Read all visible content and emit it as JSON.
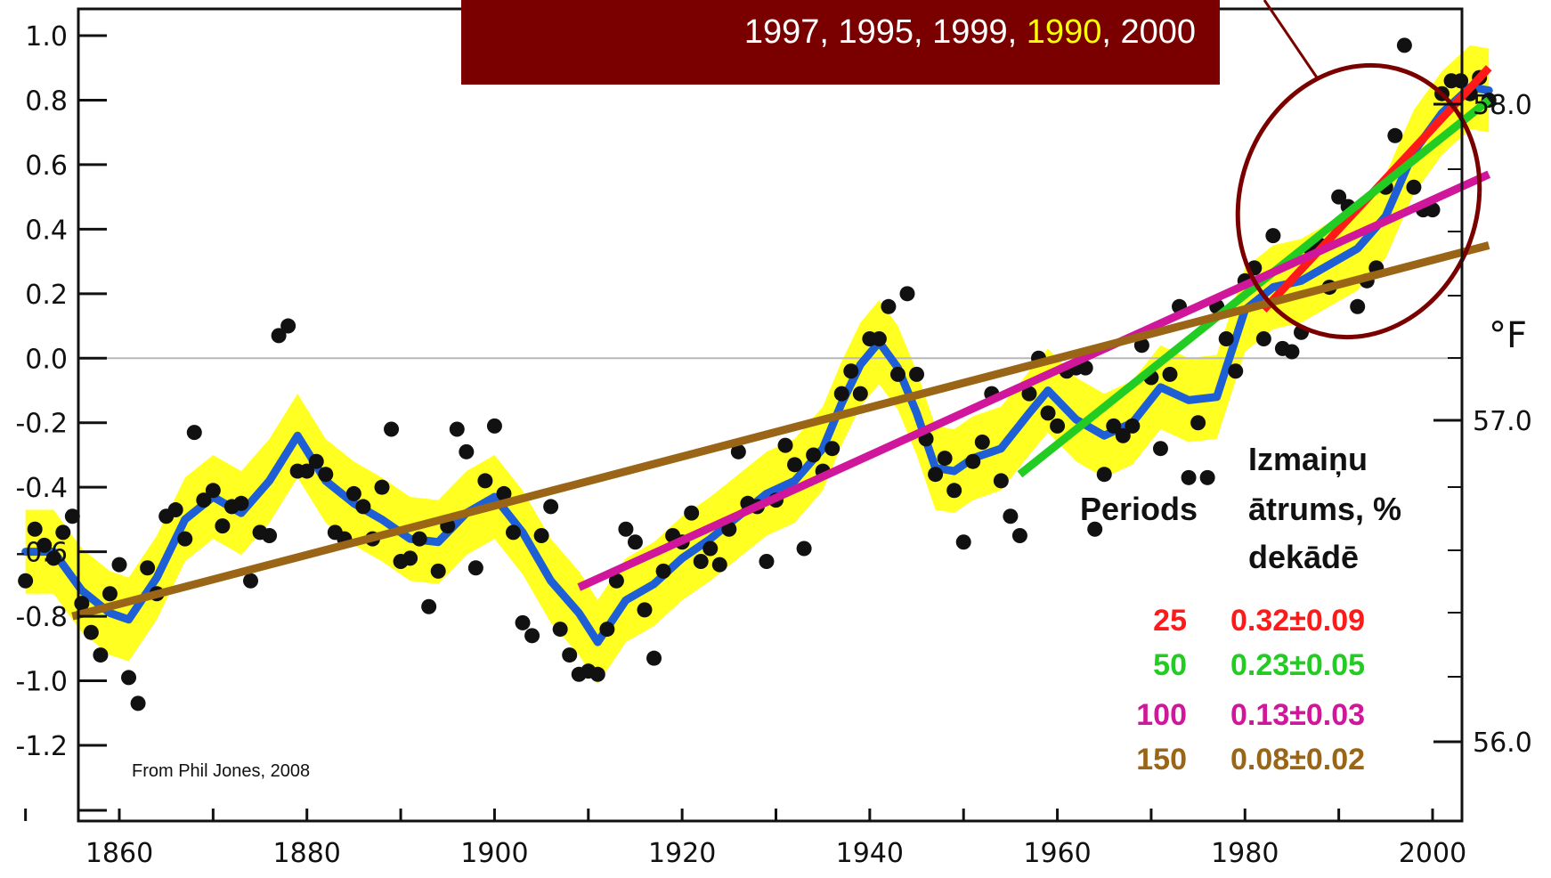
{
  "chart_data": {
    "type": "scatter",
    "x_ticks": [
      1860,
      1880,
      1900,
      1920,
      1940,
      1960,
      1980,
      2000
    ],
    "x_range": [
      1848,
      2010
    ],
    "y_ticks": [
      "1.0",
      "0.8",
      "0.6",
      "0.4",
      "0.2",
      "0.0",
      "-0.2",
      "-0.4",
      "-0.6",
      "-0.8",
      "-1.0",
      "-1.2"
    ],
    "y_tick_values": [
      1.0,
      0.8,
      0.6,
      0.4,
      0.2,
      0.0,
      -0.2,
      -0.4,
      -0.6,
      -0.8,
      -1.0,
      -1.2
    ],
    "y_range": [
      -1.4,
      1.1
    ],
    "right_ticks": [
      "58.0",
      "57.0",
      "56.0"
    ],
    "right_tick_values": [
      58.0,
      57.0,
      56.0
    ],
    "right_unit": "°F",
    "zero_line": true,
    "annual_points": [
      [
        1850,
        -0.69
      ],
      [
        1851,
        -0.53
      ],
      [
        1852,
        -0.58
      ],
      [
        1853,
        -0.62
      ],
      [
        1854,
        -0.54
      ],
      [
        1855,
        -0.49
      ],
      [
        1856,
        -0.76
      ],
      [
        1857,
        -0.85
      ],
      [
        1858,
        -0.92
      ],
      [
        1859,
        -0.73
      ],
      [
        1860,
        -0.64
      ],
      [
        1861,
        -0.99
      ],
      [
        1862,
        -1.07
      ],
      [
        1863,
        -0.65
      ],
      [
        1864,
        -0.73
      ],
      [
        1865,
        -0.49
      ],
      [
        1866,
        -0.47
      ],
      [
        1867,
        -0.56
      ],
      [
        1868,
        -0.23
      ],
      [
        1869,
        -0.44
      ],
      [
        1870,
        -0.41
      ],
      [
        1871,
        -0.52
      ],
      [
        1872,
        -0.46
      ],
      [
        1873,
        -0.45
      ],
      [
        1874,
        -0.69
      ],
      [
        1875,
        -0.54
      ],
      [
        1876,
        -0.55
      ],
      [
        1877,
        0.07
      ],
      [
        1878,
        0.1
      ],
      [
        1879,
        -0.35
      ],
      [
        1880,
        -0.35
      ],
      [
        1881,
        -0.32
      ],
      [
        1882,
        -0.36
      ],
      [
        1883,
        -0.54
      ],
      [
        1884,
        -0.56
      ],
      [
        1885,
        -0.42
      ],
      [
        1886,
        -0.46
      ],
      [
        1887,
        -0.56
      ],
      [
        1888,
        -0.4
      ],
      [
        1889,
        -0.22
      ],
      [
        1890,
        -0.63
      ],
      [
        1891,
        -0.62
      ],
      [
        1892,
        -0.56
      ],
      [
        1893,
        -0.77
      ],
      [
        1894,
        -0.66
      ],
      [
        1895,
        -0.52
      ],
      [
        1896,
        -0.22
      ],
      [
        1897,
        -0.29
      ],
      [
        1898,
        -0.65
      ],
      [
        1899,
        -0.38
      ],
      [
        1900,
        -0.21
      ],
      [
        1901,
        -0.42
      ],
      [
        1902,
        -0.54
      ],
      [
        1903,
        -0.82
      ],
      [
        1904,
        -0.86
      ],
      [
        1905,
        -0.55
      ],
      [
        1906,
        -0.46
      ],
      [
        1907,
        -0.84
      ],
      [
        1908,
        -0.92
      ],
      [
        1909,
        -0.98
      ],
      [
        1910,
        -0.97
      ],
      [
        1911,
        -0.98
      ],
      [
        1912,
        -0.84
      ],
      [
        1913,
        -0.69
      ],
      [
        1914,
        -0.53
      ],
      [
        1915,
        -0.57
      ],
      [
        1916,
        -0.78
      ],
      [
        1917,
        -0.93
      ],
      [
        1918,
        -0.66
      ],
      [
        1919,
        -0.55
      ],
      [
        1920,
        -0.57
      ],
      [
        1921,
        -0.48
      ],
      [
        1922,
        -0.63
      ],
      [
        1923,
        -0.59
      ],
      [
        1924,
        -0.64
      ],
      [
        1925,
        -0.53
      ],
      [
        1926,
        -0.29
      ],
      [
        1927,
        -0.45
      ],
      [
        1928,
        -0.46
      ],
      [
        1929,
        -0.63
      ],
      [
        1930,
        -0.44
      ],
      [
        1931,
        -0.27
      ],
      [
        1932,
        -0.33
      ],
      [
        1933,
        -0.59
      ],
      [
        1934,
        -0.3
      ],
      [
        1935,
        -0.35
      ],
      [
        1936,
        -0.28
      ],
      [
        1937,
        -0.11
      ],
      [
        1938,
        -0.04
      ],
      [
        1939,
        -0.11
      ],
      [
        1940,
        0.06
      ],
      [
        1941,
        0.06
      ],
      [
        1942,
        0.16
      ],
      [
        1943,
        -0.05
      ],
      [
        1944,
        0.2
      ],
      [
        1945,
        -0.05
      ],
      [
        1946,
        -0.25
      ],
      [
        1947,
        -0.36
      ],
      [
        1948,
        -0.31
      ],
      [
        1949,
        -0.41
      ],
      [
        1950,
        -0.57
      ],
      [
        1951,
        -0.32
      ],
      [
        1952,
        -0.26
      ],
      [
        1953,
        -0.11
      ],
      [
        1954,
        -0.38
      ],
      [
        1955,
        -0.49
      ],
      [
        1956,
        -0.55
      ],
      [
        1957,
        -0.11
      ],
      [
        1958,
        0.0
      ],
      [
        1959,
        -0.17
      ],
      [
        1960,
        -0.21
      ],
      [
        1961,
        -0.04
      ],
      [
        1962,
        -0.03
      ],
      [
        1963,
        -0.03
      ],
      [
        1964,
        -0.53
      ],
      [
        1965,
        -0.36
      ],
      [
        1966,
        -0.21
      ],
      [
        1967,
        -0.24
      ],
      [
        1968,
        -0.21
      ],
      [
        1969,
        0.04
      ],
      [
        1970,
        -0.06
      ],
      [
        1971,
        -0.28
      ],
      [
        1972,
        -0.05
      ],
      [
        1973,
        0.16
      ],
      [
        1974,
        -0.37
      ],
      [
        1975,
        -0.2
      ],
      [
        1976,
        -0.37
      ],
      [
        1977,
        0.16
      ],
      [
        1978,
        0.06
      ],
      [
        1979,
        -0.04
      ],
      [
        1980,
        0.24
      ],
      [
        1981,
        0.28
      ],
      [
        1982,
        0.06
      ],
      [
        1983,
        0.38
      ],
      [
        1984,
        0.03
      ],
      [
        1985,
        0.02
      ],
      [
        1986,
        0.08
      ],
      [
        1987,
        0.34
      ],
      [
        1988,
        0.35
      ],
      [
        1989,
        0.22
      ],
      [
        1990,
        0.5
      ],
      [
        1991,
        0.47
      ],
      [
        1992,
        0.16
      ],
      [
        1993,
        0.24
      ],
      [
        1994,
        0.28
      ],
      [
        1995,
        0.53
      ],
      [
        1996,
        0.69
      ],
      [
        1997,
        0.97
      ],
      [
        1998,
        0.53
      ],
      [
        1999,
        0.46
      ],
      [
        2000,
        0.46
      ],
      [
        2001,
        0.82
      ],
      [
        2002,
        0.86
      ],
      [
        2003,
        0.86
      ],
      [
        2004,
        0.82
      ],
      [
        2005,
        0.87
      ],
      [
        2006,
        0.8
      ]
    ],
    "smooth": [
      [
        1850,
        -0.6
      ],
      [
        1853,
        -0.6
      ],
      [
        1856,
        -0.72
      ],
      [
        1859,
        -0.79
      ],
      [
        1861,
        -0.81
      ],
      [
        1864,
        -0.68
      ],
      [
        1867,
        -0.5
      ],
      [
        1870,
        -0.43
      ],
      [
        1873,
        -0.48
      ],
      [
        1876,
        -0.38
      ],
      [
        1879,
        -0.24
      ],
      [
        1882,
        -0.38
      ],
      [
        1885,
        -0.45
      ],
      [
        1888,
        -0.5
      ],
      [
        1891,
        -0.56
      ],
      [
        1894,
        -0.57
      ],
      [
        1897,
        -0.48
      ],
      [
        1900,
        -0.43
      ],
      [
        1903,
        -0.54
      ],
      [
        1906,
        -0.69
      ],
      [
        1909,
        -0.79
      ],
      [
        1911,
        -0.88
      ],
      [
        1914,
        -0.75
      ],
      [
        1917,
        -0.7
      ],
      [
        1920,
        -0.62
      ],
      [
        1923,
        -0.56
      ],
      [
        1926,
        -0.49
      ],
      [
        1929,
        -0.42
      ],
      [
        1932,
        -0.38
      ],
      [
        1935,
        -0.28
      ],
      [
        1937,
        -0.14
      ],
      [
        1939,
        -0.02
      ],
      [
        1941,
        0.05
      ],
      [
        1943,
        -0.03
      ],
      [
        1945,
        -0.17
      ],
      [
        1947,
        -0.34
      ],
      [
        1949,
        -0.35
      ],
      [
        1951,
        -0.31
      ],
      [
        1954,
        -0.28
      ],
      [
        1957,
        -0.17
      ],
      [
        1959,
        -0.1
      ],
      [
        1962,
        -0.19
      ],
      [
        1965,
        -0.24
      ],
      [
        1968,
        -0.2
      ],
      [
        1971,
        -0.09
      ],
      [
        1974,
        -0.13
      ],
      [
        1977,
        -0.12
      ],
      [
        1980,
        0.15
      ],
      [
        1983,
        0.22
      ],
      [
        1986,
        0.24
      ],
      [
        1989,
        0.29
      ],
      [
        1992,
        0.34
      ],
      [
        1995,
        0.44
      ],
      [
        1998,
        0.64
      ],
      [
        2001,
        0.76
      ],
      [
        2004,
        0.84
      ],
      [
        2006,
        0.83
      ]
    ],
    "band_half_width": 0.13,
    "trends": [
      {
        "period": "25",
        "color": "#ff1a1a",
        "x": [
          1982,
          2006
        ],
        "y": [
          0.15,
          0.9
        ]
      },
      {
        "period": "50",
        "color": "#22cc22",
        "x": [
          1956,
          2006
        ],
        "y": [
          -0.36,
          0.8
        ]
      },
      {
        "period": "100",
        "color": "#d0169a",
        "x": [
          1909,
          2006
        ],
        "y": [
          -0.71,
          0.57
        ]
      },
      {
        "period": "150",
        "color": "#9a6516",
        "x": [
          1855,
          2006
        ],
        "y": [
          -0.8,
          0.35
        ]
      }
    ]
  },
  "callout": {
    "text_a": "1997, 1995, 1999, ",
    "text_highlight": "1990",
    "text_b": ", 2000",
    "bg_color": "#7a0000",
    "highlight_color": "#ffff00"
  },
  "legend": {
    "col1_header": "Periods",
    "col2_header_line1": "Izmaiņu",
    "col2_header_line2": "ātrums, %",
    "col2_header_line3": "dekādē",
    "rows": [
      {
        "period": "25",
        "rate": "0.32±0.09",
        "color": "#ff1a1a"
      },
      {
        "period": "50",
        "rate": "0.23±0.05",
        "color": "#22cc22"
      },
      {
        "period": "100",
        "rate": "0.13±0.03",
        "color": "#d0169a"
      },
      {
        "period": "150",
        "rate": "0.08±0.02",
        "color": "#9a6516"
      }
    ]
  },
  "credit": "From Phil Jones, 2008",
  "ellipse_color": "#7a0000",
  "band_color": "#ffff22",
  "smooth_color": "#1f5fd6"
}
